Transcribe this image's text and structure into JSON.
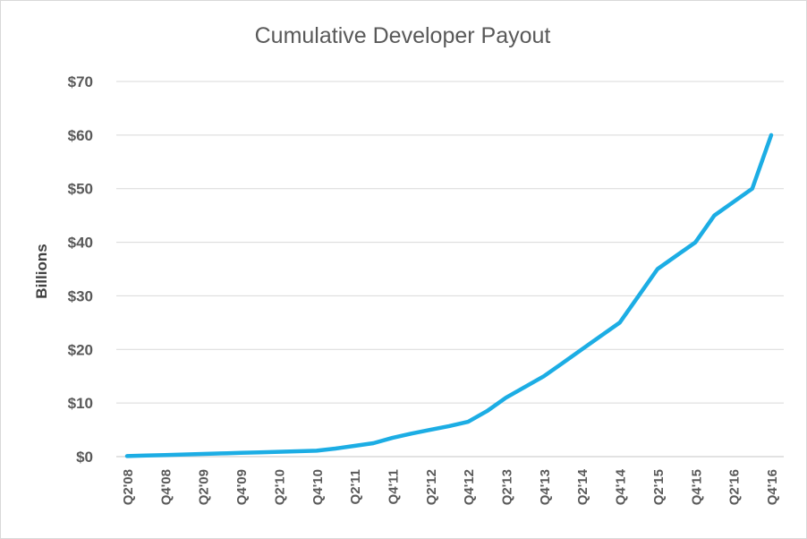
{
  "chart_data": {
    "type": "line",
    "title": "Cumulative Developer Payout",
    "xlabel": "",
    "ylabel": "Billions",
    "ylim": [
      0,
      70
    ],
    "y_ticks": [
      "$0",
      "$10",
      "$20",
      "$30",
      "$40",
      "$50",
      "$60",
      "$70"
    ],
    "grid": true,
    "legend": "none",
    "line_color": "#1CADE4",
    "grid_color": "#d9d9d9",
    "x_categories": [
      "Q2'08",
      "Q4'08",
      "Q2'09",
      "Q4'09",
      "Q2'10",
      "Q4'10",
      "Q2'11",
      "Q4'11",
      "Q2'12",
      "Q4'12",
      "Q2'13",
      "Q4'13",
      "Q2'14",
      "Q4'14",
      "Q2'15",
      "Q4'15",
      "Q2'16",
      "Q4'16"
    ],
    "series": [
      {
        "x": [
          0,
          0.5,
          1,
          1.5,
          2,
          2.5,
          3,
          3.5,
          4,
          4.5,
          5,
          5.5,
          6,
          6.5,
          7,
          7.5,
          8,
          8.5,
          9,
          9.5,
          10,
          10.5,
          11,
          11.5,
          12,
          12.5,
          13,
          13.5,
          14,
          14.5,
          15,
          15.5,
          16,
          16.5,
          17
        ],
        "y": [
          0.1,
          0.2,
          0.3,
          0.4,
          0.5,
          0.6,
          0.7,
          0.8,
          0.9,
          1.0,
          1.1,
          1.5,
          2.0,
          2.5,
          3.5,
          4.3,
          5.0,
          5.7,
          6.5,
          8.5,
          11.0,
          13.0,
          15.0,
          17.5,
          20.0,
          22.5,
          25.0,
          30.0,
          35.0,
          37.5,
          40.0,
          45.0,
          47.5,
          50.0,
          60.0
        ]
      }
    ]
  }
}
